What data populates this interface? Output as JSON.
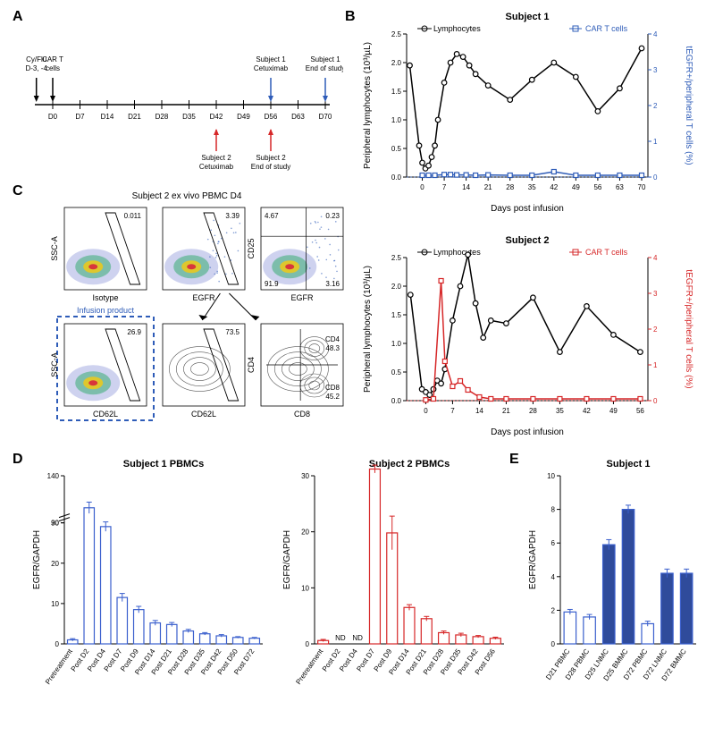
{
  "panelLabels": {
    "A": "A",
    "B": "B",
    "C": "C",
    "D": "D",
    "E": "E"
  },
  "colors": {
    "black": "#000000",
    "blue": "#2e5cb8",
    "red": "#d62728",
    "darkblue": "#2f4b9b",
    "bar_outline_blue": "#3a5fcd",
    "bar_fill_blue": "#3a5fcd",
    "bar_outline_red": "#d62728",
    "bg": "#ffffff",
    "flow_dashed": "#2e5cb8"
  },
  "timeline": {
    "days": [
      "D0",
      "D7",
      "D14",
      "D21",
      "D28",
      "D35",
      "D42",
      "D49",
      "D56",
      "D63",
      "D70"
    ],
    "top_events": [
      {
        "label": "Cy/Flu\nD-3, -4",
        "x": -0.6,
        "color": "#000000"
      },
      {
        "label": "CAR T\ncells",
        "x": 0,
        "color": "#000000"
      },
      {
        "label": "Subject 1\nCetuximab",
        "x": 8,
        "color": "#2e5cb8"
      },
      {
        "label": "Subject 1\nEnd of study",
        "x": 10,
        "color": "#2e5cb8"
      }
    ],
    "bottom_events": [
      {
        "label": "Subject 2\nCetuximab",
        "x": 6,
        "color": "#d62728"
      },
      {
        "label": "Subject 2\nEnd of study",
        "x": 8,
        "color": "#d62728"
      }
    ]
  },
  "subject1": {
    "title": "Subject 1",
    "legend": {
      "left": "Lymphocytes",
      "right": "CAR T cells"
    },
    "xaxis": {
      "label": "Days post infusion",
      "ticks": [
        0,
        7,
        14,
        21,
        28,
        35,
        42,
        49,
        56,
        63,
        70
      ]
    },
    "yleft": {
      "label": "Peripheral lymphocytes (10³/µL)",
      "min": 0,
      "max": 2.5,
      "step": 0.5,
      "color": "#000000"
    },
    "yright": {
      "label": "tEGFR+/peripheral T cells (%)",
      "min": 0,
      "max": 4,
      "step": 1,
      "color": "#2e5cb8"
    },
    "lymph": {
      "x": [
        -4,
        -1,
        0,
        1,
        2,
        3,
        4,
        5,
        7,
        9,
        11,
        13,
        15,
        17,
        21,
        28,
        35,
        42,
        49,
        56,
        63,
        70
      ],
      "y": [
        1.95,
        0.55,
        0.25,
        0.15,
        0.2,
        0.35,
        0.55,
        1.0,
        1.65,
        2.0,
        2.15,
        2.1,
        1.95,
        1.8,
        1.6,
        1.35,
        1.7,
        2.0,
        1.75,
        1.15,
        1.55,
        2.25
      ]
    },
    "car": {
      "x": [
        0,
        2,
        4,
        7,
        9,
        11,
        14,
        17,
        21,
        28,
        35,
        42,
        49,
        56,
        63,
        70
      ],
      "y": [
        0.05,
        0.05,
        0.05,
        0.07,
        0.07,
        0.06,
        0.06,
        0.05,
        0.06,
        0.05,
        0.05,
        0.15,
        0.05,
        0.05,
        0.05,
        0.05
      ]
    }
  },
  "subject2": {
    "title": "Subject 2",
    "legend": {
      "left": "Lymphocytes",
      "right": "CAR T cells"
    },
    "xaxis": {
      "label": "Days post infusion",
      "ticks": [
        0,
        7,
        14,
        21,
        28,
        35,
        42,
        49,
        56
      ]
    },
    "yleft": {
      "label": "Peripheral lymphocytes (10³/µL)",
      "min": 0,
      "max": 2.5,
      "step": 0.5,
      "color": "#000000"
    },
    "yright": {
      "label": "tEGFR+/peripheral T cells (%)",
      "min": 0,
      "max": 4,
      "step": 1,
      "color": "#d62728"
    },
    "lymph": {
      "x": [
        -4,
        -1,
        0,
        1,
        2,
        3,
        4,
        5,
        7,
        9,
        11,
        13,
        15,
        17,
        21,
        28,
        35,
        42,
        49,
        56
      ],
      "y": [
        1.85,
        0.2,
        0.15,
        0.1,
        0.2,
        0.35,
        0.3,
        0.55,
        1.4,
        2.0,
        2.55,
        1.7,
        1.1,
        1.4,
        1.35,
        1.8,
        0.85,
        1.65,
        1.15,
        0.85
      ]
    },
    "car": {
      "x": [
        0,
        2,
        4,
        5,
        7,
        9,
        11,
        14,
        17,
        21,
        28,
        35,
        42,
        49,
        56
      ],
      "y": [
        0.02,
        0.05,
        3.35,
        1.1,
        0.4,
        0.55,
        0.3,
        0.1,
        0.05,
        0.05,
        0.05,
        0.05,
        0.05,
        0.05,
        0.05
      ]
    }
  },
  "flow": {
    "title": "Subject 2 ex vivo PBMC D4",
    "plots": [
      {
        "xlab": "Isotype",
        "ylab": "SSC-A",
        "gate": "0.011"
      },
      {
        "xlab": "EGFR",
        "ylab": "",
        "gate": "3.39"
      },
      {
        "xlab": "EGFR",
        "ylab": "CD25",
        "quad": [
          "4.67",
          "0.23",
          "91.9",
          "3.16"
        ]
      },
      {
        "xlab": "CD62L",
        "ylab": "SSC-A",
        "gate": "26.9",
        "infusion": true,
        "label": "Infusion product"
      },
      {
        "xlab": "CD62L",
        "ylab": "",
        "gate": "73.5"
      },
      {
        "xlab": "CD8",
        "ylab": "CD4",
        "labels": [
          {
            "t": "CD4",
            "v": "48.3"
          },
          {
            "t": "CD8",
            "v": "45.2"
          }
        ]
      }
    ]
  },
  "barD1": {
    "title": "Subject 1 PBMCs",
    "ylab": "EGFR/GAPDH",
    "color": "#3a5fcd",
    "yticks": [
      0,
      10,
      20,
      30,
      90,
      140
    ],
    "break": true,
    "cats": [
      "Pretreatment",
      "Post D2",
      "Post D4",
      "Post D7",
      "Post D9",
      "Post D14",
      "Post D21",
      "Post D28",
      "Post D35",
      "Post D42",
      "Post D50",
      "Post D72"
    ],
    "vals": [
      1.0,
      106,
      86,
      11.5,
      8.5,
      5.2,
      4.8,
      3.2,
      2.5,
      2.0,
      1.6,
      1.4
    ],
    "err": [
      0.3,
      6,
      5,
      1.0,
      0.8,
      0.6,
      0.5,
      0.4,
      0.3,
      0.3,
      0.2,
      0.2
    ]
  },
  "barD2": {
    "title": "Subject 2 PBMCs",
    "ylab": "EGFR/GAPDH",
    "color": "#d62728",
    "yticks": [
      0,
      10,
      20,
      30
    ],
    "break": false,
    "cats": [
      "Pretreatment",
      "Post D2",
      "Post D4",
      "Post D7",
      "Post D9",
      "Post D14",
      "Post D21",
      "Post D28",
      "Post D35",
      "Post D42",
      "Post D56"
    ],
    "vals": [
      0.6,
      null,
      null,
      31.2,
      19.8,
      6.5,
      4.5,
      2.0,
      1.6,
      1.3,
      1.0
    ],
    "err": [
      0.2,
      0,
      0,
      0.7,
      3.0,
      0.5,
      0.4,
      0.3,
      0.3,
      0.2,
      0.2
    ],
    "nd": [
      "",
      "ND",
      "ND",
      "",
      "",
      "",
      "",
      "",
      "",
      "",
      ""
    ]
  },
  "barE": {
    "title": "Subject 1",
    "ylab": "EGFR/GAPDH",
    "color_open": "#3a5fcd",
    "color_fill": "#2f4b9b",
    "yticks": [
      0,
      2,
      4,
      6,
      8,
      10
    ],
    "cats": [
      "D21 PBMC",
      "D28 PBMC",
      "D25 LNMC",
      "D25 BMMC",
      "D72 PBMC",
      "D72 LNMC",
      "D72 BMMC"
    ],
    "vals": [
      1.9,
      1.6,
      5.9,
      8.0,
      1.2,
      4.2,
      4.2
    ],
    "err": [
      0.15,
      0.15,
      0.3,
      0.25,
      0.15,
      0.25,
      0.25
    ],
    "filled": [
      false,
      false,
      true,
      true,
      false,
      true,
      true
    ]
  },
  "font": {
    "axis": 9,
    "label": 10,
    "title": 11,
    "panel": 16
  }
}
